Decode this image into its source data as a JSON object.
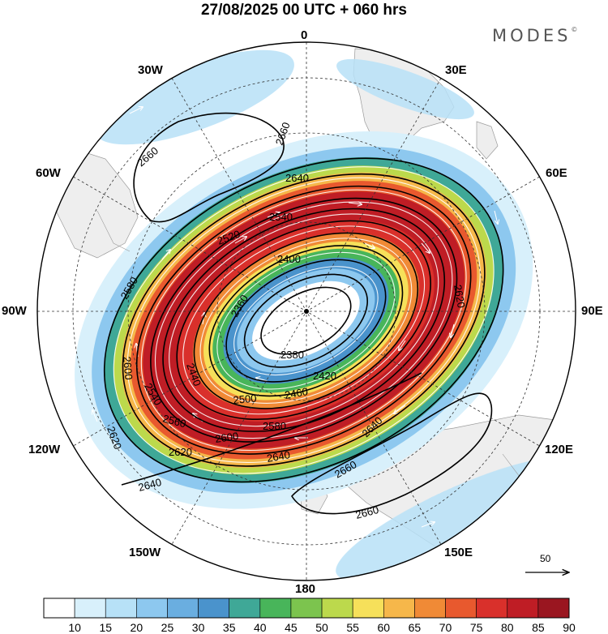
{
  "title": "27/08/2025  00 UTC  + 060 hrs",
  "brand": "MODES",
  "brand_mark": "©",
  "longitude_labels": {
    "lon_0": "0",
    "lon_30e": "30E",
    "lon_60e": "60E",
    "lon_90e": "90E",
    "lon_120e": "120E",
    "lon_150e": "150E",
    "lon_180": "180",
    "lon_150w": "150W",
    "lon_120w": "120W",
    "lon_90w": "90W",
    "lon_60w": "60W",
    "lon_30w": "30W"
  },
  "contours": {
    "c2660a": "2660",
    "c2660b": "2660",
    "c2660c": "2660",
    "c2660d": "2660",
    "c2640a": "2640",
    "c2640b": "2640",
    "c2640c": "2640",
    "c2640d": "2640",
    "c2620a": "2620",
    "c2620b": "2620",
    "c2620c": "2620",
    "c2600a": "2600",
    "c2600b": "2600",
    "c2580a": "2580",
    "c2580b": "2580",
    "c2560": "2560",
    "c2540a": "2540",
    "c2540b": "2540",
    "c2520": "2520",
    "c2500": "2500",
    "c2460": "2460",
    "c2440": "2440",
    "c2420": "2420",
    "c2400": "2400",
    "c2380": "2380",
    "c2360": "2360"
  },
  "reference_vector": "50",
  "colorbar": {
    "labels": [
      "10",
      "15",
      "20",
      "25",
      "30",
      "35",
      "40",
      "45",
      "50",
      "55",
      "60",
      "65",
      "70",
      "75",
      "80",
      "85",
      "90"
    ],
    "colors": [
      "#ffffff",
      "#d8f0fb",
      "#b7e1f7",
      "#8dc8ef",
      "#6aaee0",
      "#4a93cc",
      "#3fa897",
      "#48b55a",
      "#7cc44e",
      "#bcd94c",
      "#f6e05a",
      "#f6b74a",
      "#f08a36",
      "#e8592e",
      "#d9302b",
      "#bf1d25",
      "#9a1620"
    ]
  }
}
